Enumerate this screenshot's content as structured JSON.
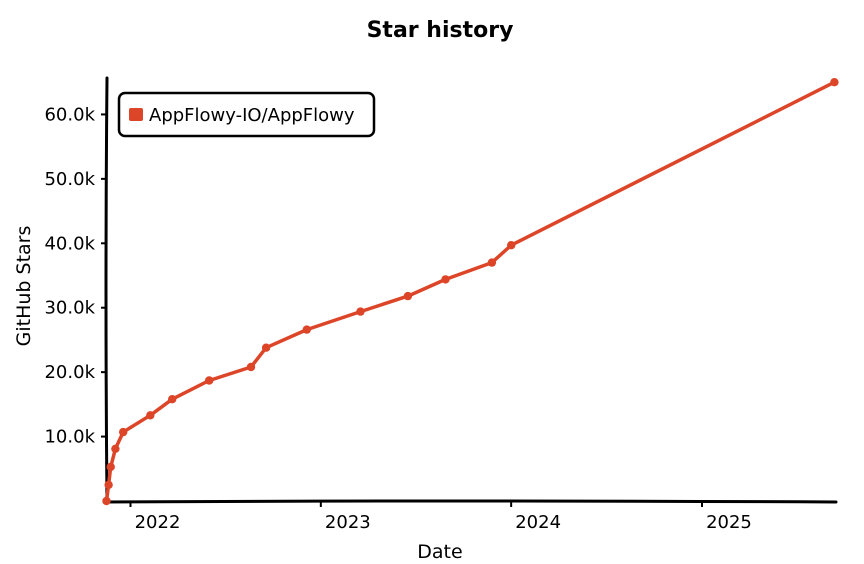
{
  "chart_data": {
    "type": "line",
    "title": "Star history",
    "xlabel": "Date",
    "ylabel": "GitHub Stars",
    "x_axis_type": "date",
    "xlim": [
      "2021-11-15",
      "2025-09-15"
    ],
    "ylim": [
      0,
      65500
    ],
    "x_ticks": [
      {
        "date": "2022-01-01",
        "label": "2022"
      },
      {
        "date": "2023-01-01",
        "label": "2023"
      },
      {
        "date": "2024-01-01",
        "label": "2024"
      },
      {
        "date": "2025-01-01",
        "label": "2025"
      }
    ],
    "y_ticks": [
      {
        "value": 10000,
        "label": "10.0k"
      },
      {
        "value": 20000,
        "label": "20.0k"
      },
      {
        "value": 30000,
        "label": "30.0k"
      },
      {
        "value": 40000,
        "label": "40.0k"
      },
      {
        "value": 50000,
        "label": "50.0k"
      },
      {
        "value": 60000,
        "label": "60.0k"
      }
    ],
    "grid": false,
    "legend_position": "top-left",
    "series": [
      {
        "name": "AppFlowy-IO/AppFlowy",
        "color": "#dd4528",
        "points": [
          {
            "x": "2021-11-16",
            "y": 0
          },
          {
            "x": "2021-11-20",
            "y": 2500
          },
          {
            "x": "2021-11-24",
            "y": 5300
          },
          {
            "x": "2021-12-03",
            "y": 8100
          },
          {
            "x": "2021-12-18",
            "y": 10700
          },
          {
            "x": "2022-02-08",
            "y": 13300
          },
          {
            "x": "2022-03-22",
            "y": 15800
          },
          {
            "x": "2022-06-01",
            "y": 18700
          },
          {
            "x": "2022-08-20",
            "y": 20800
          },
          {
            "x": "2022-09-18",
            "y": 23800
          },
          {
            "x": "2022-12-05",
            "y": 26600
          },
          {
            "x": "2023-03-18",
            "y": 29400
          },
          {
            "x": "2023-06-17",
            "y": 31800
          },
          {
            "x": "2023-08-28",
            "y": 34400
          },
          {
            "x": "2023-11-25",
            "y": 37000
          },
          {
            "x": "2024-01-01",
            "y": 39700
          },
          {
            "x": "2025-09-12",
            "y": 65000
          }
        ]
      }
    ]
  }
}
